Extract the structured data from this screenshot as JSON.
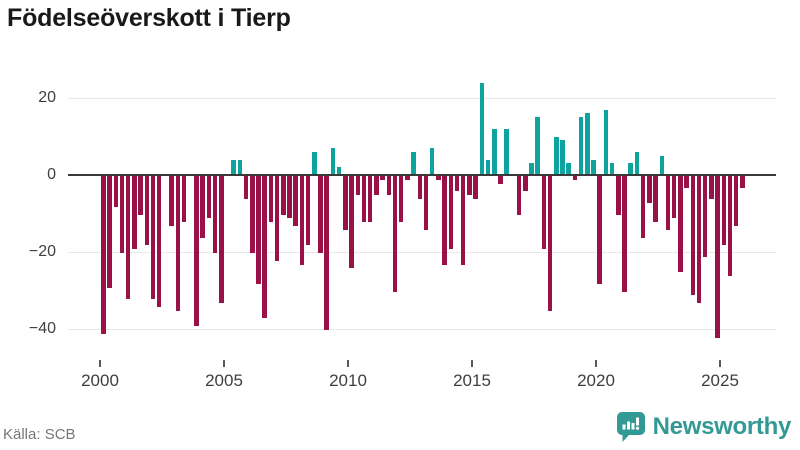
{
  "title": "Födelseöverskott i Tierp",
  "source": "Källa: SCB",
  "brand": {
    "name": "Newsworthy"
  },
  "colors": {
    "positive": "#0fa3a0",
    "negative": "#9a1148",
    "zero_line": "#3a3a3a",
    "grid": "#e8e8e8",
    "brand": "#339995",
    "axis_text": "#3f3f3f"
  },
  "y_axis": {
    "ticks": [
      20,
      0,
      -20,
      -40
    ],
    "labels": [
      "20",
      "0",
      "−20",
      "−40"
    ]
  },
  "x_axis": {
    "ticks": [
      2000,
      2005,
      2010,
      2015,
      2020,
      2025
    ],
    "labels": [
      "2000",
      "2005",
      "2010",
      "2015",
      "2020",
      "2025"
    ]
  },
  "chart_data": {
    "type": "bar",
    "title": "Födelseöverskott i Tierp",
    "xlabel": "",
    "ylabel": "",
    "ylim": [
      -45,
      27
    ],
    "yticks": [
      20,
      0,
      -20,
      -40
    ],
    "grid": true,
    "legend": false,
    "positive_color": "#0fa3a0",
    "negative_color": "#9a1148",
    "x": [
      "2000Q1",
      "2000Q2",
      "2000Q3",
      "2000Q4",
      "2001Q1",
      "2001Q2",
      "2001Q3",
      "2001Q4",
      "2002Q1",
      "2002Q2",
      "2002Q3",
      "2002Q4",
      "2003Q1",
      "2003Q2",
      "2003Q3",
      "2003Q4",
      "2004Q1",
      "2004Q2",
      "2004Q3",
      "2004Q4",
      "2005Q1",
      "2005Q2",
      "2005Q3",
      "2005Q4",
      "2006Q1",
      "2006Q2",
      "2006Q3",
      "2006Q4",
      "2007Q1",
      "2007Q2",
      "2007Q3",
      "2007Q4",
      "2008Q1",
      "2008Q2",
      "2008Q3",
      "2008Q4",
      "2009Q1",
      "2009Q2",
      "2009Q3",
      "2009Q4",
      "2010Q1",
      "2010Q2",
      "2010Q3",
      "2010Q4",
      "2011Q1",
      "2011Q2",
      "2011Q3",
      "2011Q4",
      "2012Q1",
      "2012Q2",
      "2012Q3",
      "2012Q4",
      "2013Q1",
      "2013Q2",
      "2013Q3",
      "2013Q4",
      "2014Q1",
      "2014Q2",
      "2014Q3",
      "2014Q4",
      "2015Q1",
      "2015Q2",
      "2015Q3",
      "2015Q4",
      "2016Q1",
      "2016Q2",
      "2016Q3",
      "2016Q4",
      "2017Q1",
      "2017Q2",
      "2017Q3",
      "2017Q4",
      "2018Q1",
      "2018Q2",
      "2018Q3",
      "2018Q4",
      "2019Q1",
      "2019Q2",
      "2019Q3",
      "2019Q4",
      "2020Q1",
      "2020Q2",
      "2020Q3",
      "2020Q4",
      "2021Q1",
      "2021Q2",
      "2021Q3",
      "2021Q4",
      "2022Q1",
      "2022Q2",
      "2022Q3",
      "2022Q4",
      "2023Q1",
      "2023Q2",
      "2023Q3",
      "2023Q4",
      "2024Q1",
      "2024Q2",
      "2024Q3",
      "2024Q4",
      "2025Q1",
      "2025Q2",
      "2025Q3",
      "2025Q4"
    ],
    "values": [
      -41,
      -29,
      -8,
      -20,
      -32,
      -19,
      -10,
      -18,
      -32,
      -34,
      0,
      -13,
      -35,
      -12,
      0,
      -39,
      -16,
      -11,
      -20,
      -33,
      0,
      4,
      4,
      -6,
      -20,
      -28,
      -37,
      -12,
      -22,
      -10,
      -11,
      -13,
      -23,
      -18,
      6,
      -20,
      -40,
      7,
      2,
      -14,
      -24,
      -5,
      -12,
      -12,
      -5,
      -1,
      -5,
      -30,
      -12,
      -1,
      6,
      -6,
      -14,
      7,
      -1,
      -23,
      -19,
      -4,
      -23,
      -5,
      -6,
      24,
      4,
      12,
      -2,
      12,
      0,
      -10,
      -4,
      3,
      15,
      -19,
      -35,
      10,
      9,
      3,
      -1,
      15,
      16,
      4,
      -28,
      17,
      3,
      -10,
      -30,
      3,
      6,
      -16,
      -7,
      -12,
      5,
      -14,
      -11,
      -25,
      -3,
      -31,
      -33,
      -21,
      -6,
      -42,
      -18,
      -26,
      -13,
      -3
    ]
  }
}
